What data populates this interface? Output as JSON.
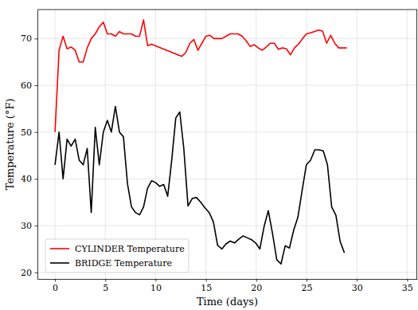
{
  "chart_data": {
    "type": "line",
    "x_label": "Time (days)",
    "y_label": "Temperature (°F)",
    "xlim": [
      -1.75,
      36
    ],
    "ylim": [
      18.6,
      76.2
    ],
    "xticks": [
      0,
      5,
      10,
      15,
      20,
      25,
      30,
      35
    ],
    "yticks": [
      20,
      30,
      40,
      50,
      60,
      70
    ],
    "grid": true,
    "legend": "lower left",
    "series": [
      {
        "name": "CYLINDER Temperature",
        "color": "#ff0000",
        "line_style": "solid",
        "x": [
          0,
          0.4,
          0.8,
          1.2,
          1.6,
          2.0,
          2.4,
          2.8,
          3.2,
          3.6,
          4.0,
          4.4,
          4.8,
          5.2,
          5.6,
          6.0,
          6.4,
          6.8,
          7.2,
          7.6,
          8.0,
          8.4,
          8.8,
          9.2,
          9.6,
          12.6,
          13.0,
          13.4,
          13.8,
          14.2,
          14.6,
          15.0,
          15.4,
          15.8,
          16.2,
          16.6,
          17.0,
          17.4,
          17.8,
          18.2,
          18.6,
          19.0,
          19.4,
          19.8,
          20.2,
          20.6,
          21.0,
          21.4,
          21.8,
          22.2,
          22.6,
          23.0,
          23.4,
          23.8,
          24.2,
          24.6,
          25.0,
          25.4,
          25.8,
          26.2,
          26.6,
          27.0,
          27.4,
          27.8,
          28.2,
          28.6,
          29.0
        ],
        "values": [
          50,
          67.5,
          70.5,
          67.8,
          68.2,
          67.5,
          65,
          65,
          68,
          70,
          71,
          72.5,
          73.5,
          71,
          71,
          70.5,
          71.5,
          71,
          71,
          71,
          70.5,
          70.5,
          74,
          68.5,
          68.8,
          66.2,
          67,
          69,
          69.8,
          67.5,
          69,
          70.5,
          70.7,
          70,
          70,
          70,
          70.5,
          71,
          71,
          71,
          70.5,
          69.5,
          68.3,
          68.7,
          68,
          67.5,
          68.2,
          69,
          69,
          67.7,
          68,
          67.8,
          66.5,
          68,
          68.8,
          70,
          71,
          71.2,
          71.5,
          71.8,
          71.6,
          69,
          70.7,
          69,
          68,
          68,
          68
        ]
      },
      {
        "name": "BRIDGE Temperature",
        "color": "#000000",
        "line_style": "solid",
        "x": [
          0,
          0.4,
          0.8,
          1.2,
          1.6,
          2.0,
          2.4,
          2.8,
          3.2,
          3.6,
          4.0,
          4.4,
          4.8,
          5.2,
          5.6,
          6.0,
          6.4,
          6.8,
          7.2,
          7.6,
          8.0,
          8.4,
          8.8,
          9.2,
          9.6,
          10.0,
          10.4,
          10.8,
          11.2,
          11.6,
          12.0,
          12.4,
          12.8,
          13.22,
          13.64,
          14.06,
          14.48,
          14.9,
          15.32,
          15.74,
          16.16,
          16.58,
          17.0,
          17.42,
          17.84,
          18.26,
          18.68,
          19.1,
          19.52,
          19.94,
          20.36,
          20.78,
          21.2,
          21.62,
          22.04,
          22.46,
          22.88,
          23.3,
          23.72,
          24.14,
          24.56,
          24.98,
          25.4,
          25.82,
          26.24,
          26.66,
          27.08,
          27.5,
          27.92,
          28.34,
          28.76
        ],
        "values": [
          43,
          50,
          40,
          48.5,
          47,
          48.5,
          44,
          43,
          46.5,
          32.8,
          51,
          43,
          50,
          52.5,
          50,
          55.5,
          50,
          49,
          39,
          34,
          32.8,
          32.3,
          34,
          38,
          39.6,
          39.2,
          38.4,
          38.8,
          36.3,
          44,
          53,
          54.3,
          46.5,
          34.2,
          35.8,
          36,
          35,
          33.8,
          32.8,
          30.8,
          25.8,
          25,
          26.1,
          26.7,
          26.3,
          27.1,
          27.8,
          27.4,
          27,
          26.3,
          25,
          29.8,
          33.2,
          28.3,
          22.7,
          21.8,
          25.7,
          25.2,
          29,
          31.8,
          37.5,
          43,
          44,
          46.2,
          46.2,
          46,
          43,
          34,
          32.2,
          26.6,
          24.2
        ]
      }
    ]
  }
}
